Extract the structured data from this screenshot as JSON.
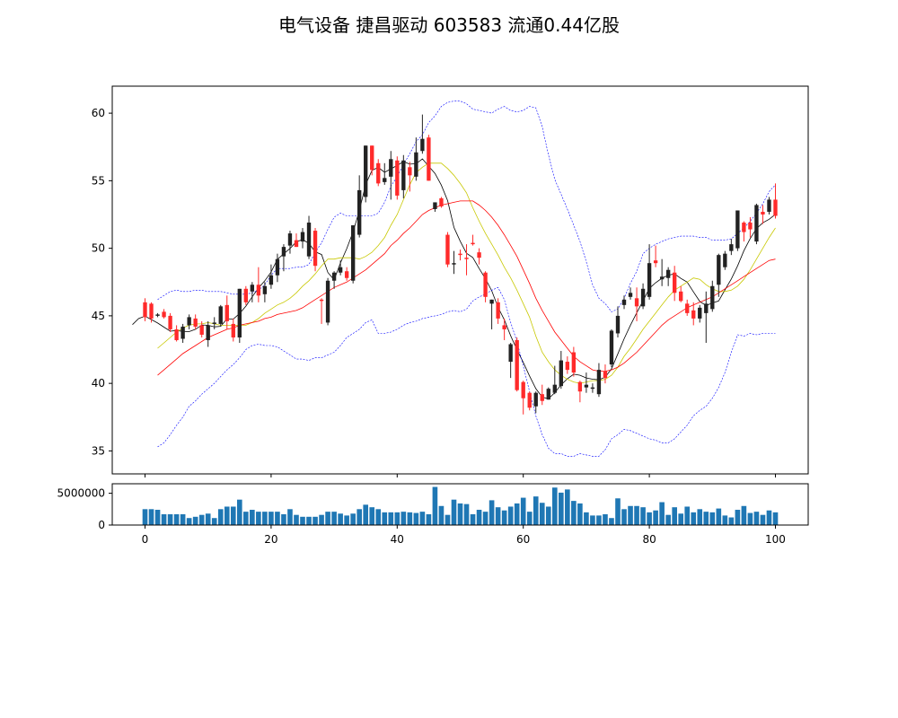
{
  "chart_data": {
    "type": "candlestick",
    "title": "电气设备 捷昌驱动 603583 流通0.44亿股",
    "price_axis": {
      "ylim": [
        33.3,
        62
      ],
      "ticks": [
        35,
        40,
        45,
        50,
        55,
        60
      ]
    },
    "volume_axis": {
      "ylim": [
        0,
        6500000
      ],
      "ticks": [
        0,
        5000000
      ],
      "tick_labels": [
        "0",
        "5000000"
      ]
    },
    "x_axis": {
      "xlim": [
        -5.2,
        105.2
      ],
      "ticks": [
        0,
        20,
        40,
        60,
        80,
        100
      ]
    },
    "colors": {
      "up": "#222222",
      "down": "#ff2a2a",
      "ma5": "#000000",
      "ma10": "#c8c800",
      "ma20": "#ff0000",
      "boll": "#0000ff",
      "volume": "#1f77b4"
    },
    "ohlc": [
      [
        46.0,
        46.3,
        44.6,
        44.9
      ],
      [
        45.9,
        46.0,
        44.5,
        44.8
      ],
      [
        45.0,
        45.2,
        44.9,
        45.1
      ],
      [
        45.3,
        45.5,
        44.8,
        44.9
      ],
      [
        45.0,
        45.2,
        43.8,
        44.0
      ],
      [
        44.0,
        44.3,
        43.1,
        43.2
      ],
      [
        43.3,
        44.4,
        43.0,
        44.2
      ],
      [
        44.3,
        45.1,
        44.0,
        44.9
      ],
      [
        44.8,
        45.1,
        44.0,
        44.2
      ],
      [
        44.3,
        44.6,
        43.4,
        43.6
      ],
      [
        43.2,
        44.6,
        42.7,
        44.3
      ],
      [
        44.4,
        44.9,
        44.0,
        44.5
      ],
      [
        44.4,
        45.8,
        44.2,
        45.7
      ],
      [
        45.8,
        46.5,
        44.0,
        44.6
      ],
      [
        44.4,
        44.8,
        43.1,
        43.4
      ],
      [
        43.4,
        47.0,
        43.0,
        47.0
      ],
      [
        47.0,
        47.2,
        45.8,
        46.0
      ],
      [
        46.8,
        47.5,
        46.0,
        47.3
      ],
      [
        47.3,
        48.6,
        46.0,
        46.5
      ],
      [
        46.6,
        47.5,
        46.0,
        47.2
      ],
      [
        47.3,
        48.8,
        47.0,
        48.0
      ],
      [
        48.0,
        49.6,
        47.5,
        49.2
      ],
      [
        49.4,
        50.3,
        48.3,
        50.1
      ],
      [
        50.2,
        51.3,
        49.6,
        51.1
      ],
      [
        50.6,
        51.1,
        50.1,
        50.1
      ],
      [
        50.5,
        51.5,
        50.0,
        51.2
      ],
      [
        49.4,
        52.4,
        49.2,
        51.9
      ],
      [
        51.3,
        51.5,
        48.3,
        48.7
      ],
      [
        46.2,
        46.3,
        44.4,
        46.1
      ],
      [
        44.5,
        47.8,
        44.3,
        47.6
      ],
      [
        47.6,
        48.3,
        47.0,
        48.2
      ],
      [
        48.2,
        49.1,
        48.0,
        48.6
      ],
      [
        48.3,
        48.6,
        47.6,
        47.8
      ],
      [
        47.6,
        51.7,
        47.4,
        51.7
      ],
      [
        51.0,
        55.4,
        50.8,
        54.3
      ],
      [
        53.8,
        57.6,
        53.4,
        57.6
      ],
      [
        57.6,
        57.6,
        55.4,
        55.8
      ],
      [
        56.3,
        56.6,
        54.6,
        54.8
      ],
      [
        54.9,
        56.3,
        54.7,
        55.2
      ],
      [
        55.3,
        57.2,
        53.6,
        56.6
      ],
      [
        56.5,
        56.8,
        53.6,
        53.9
      ],
      [
        54.3,
        56.9,
        53.7,
        56.5
      ],
      [
        56.0,
        56.4,
        54.2,
        55.4
      ],
      [
        55.3,
        58.2,
        55.0,
        57.1
      ],
      [
        57.2,
        59.9,
        57.0,
        58.1
      ],
      [
        58.2,
        58.4,
        55.0,
        55.0
      ],
      [
        52.9,
        53.4,
        52.7,
        53.4
      ],
      [
        53.7,
        53.8,
        53.0,
        53.1
      ],
      [
        51.0,
        51.2,
        48.6,
        48.8
      ],
      [
        48.8,
        49.8,
        48.1,
        48.9
      ],
      [
        49.6,
        49.9,
        49.1,
        49.5
      ],
      [
        49.3,
        50.3,
        48.0,
        49.2
      ],
      [
        50.4,
        51.0,
        50.2,
        50.3
      ],
      [
        49.7,
        50.0,
        48.8,
        49.3
      ],
      [
        48.2,
        48.3,
        46.0,
        46.4
      ],
      [
        45.9,
        46.2,
        44.0,
        46.2
      ],
      [
        46.0,
        46.3,
        44.4,
        44.8
      ],
      [
        44.3,
        44.8,
        43.2,
        44.0
      ],
      [
        41.6,
        43.0,
        40.4,
        42.9
      ],
      [
        43.2,
        43.4,
        39.4,
        39.5
      ],
      [
        40.1,
        40.2,
        37.7,
        38.9
      ],
      [
        39.3,
        39.4,
        38.0,
        38.2
      ],
      [
        38.3,
        39.4,
        37.8,
        39.3
      ],
      [
        39.2,
        39.9,
        38.4,
        38.7
      ],
      [
        38.8,
        39.7,
        38.8,
        39.6
      ],
      [
        39.3,
        41.3,
        39.2,
        39.9
      ],
      [
        39.8,
        42.4,
        39.6,
        41.7
      ],
      [
        41.6,
        42.0,
        40.7,
        41.0
      ],
      [
        42.3,
        42.7,
        40.5,
        40.8
      ],
      [
        40.1,
        40.2,
        38.6,
        39.4
      ],
      [
        39.7,
        40.8,
        39.3,
        39.9
      ],
      [
        39.6,
        40.0,
        39.3,
        39.7
      ],
      [
        39.2,
        41.5,
        39.0,
        41.0
      ],
      [
        40.9,
        41.4,
        40.0,
        40.4
      ],
      [
        41.4,
        44.0,
        41.2,
        43.9
      ],
      [
        43.7,
        45.7,
        43.4,
        45.0
      ],
      [
        45.8,
        46.5,
        45.5,
        46.2
      ],
      [
        46.4,
        47.1,
        46.2,
        46.7
      ],
      [
        46.3,
        47.1,
        44.6,
        45.7
      ],
      [
        45.7,
        47.4,
        45.5,
        47.0
      ],
      [
        46.4,
        50.3,
        46.2,
        48.9
      ],
      [
        49.1,
        50.2,
        48.6,
        48.9
      ],
      [
        47.7,
        49.2,
        47.2,
        47.9
      ],
      [
        47.8,
        48.6,
        47.2,
        48.4
      ],
      [
        48.2,
        48.7,
        46.1,
        46.7
      ],
      [
        46.8,
        47.2,
        46.0,
        46.1
      ],
      [
        45.9,
        46.2,
        45.0,
        45.2
      ],
      [
        45.4,
        46.0,
        44.3,
        44.8
      ],
      [
        44.8,
        45.8,
        44.5,
        45.6
      ],
      [
        45.2,
        46.8,
        43.0,
        45.9
      ],
      [
        45.5,
        47.6,
        45.3,
        47.2
      ],
      [
        47.3,
        49.6,
        46.4,
        49.5
      ],
      [
        48.6,
        49.8,
        48.4,
        49.6
      ],
      [
        49.8,
        50.7,
        49.5,
        50.3
      ],
      [
        50.0,
        52.8,
        49.8,
        52.8
      ],
      [
        51.9,
        52.0,
        50.5,
        51.2
      ],
      [
        51.9,
        52.3,
        50.8,
        51.4
      ],
      [
        50.5,
        53.3,
        50.3,
        53.2
      ],
      [
        52.7,
        53.2,
        51.8,
        52.5
      ],
      [
        52.7,
        53.8,
        52.5,
        53.6
      ],
      [
        53.6,
        54.8,
        52.2,
        52.4
      ]
    ],
    "volume": [
      2500000,
      2500000,
      2400000,
      1700000,
      1700000,
      1700000,
      1700000,
      1100000,
      1300000,
      1600000,
      1800000,
      1100000,
      2500000,
      2900000,
      2900000,
      4000000,
      2100000,
      2400000,
      2100000,
      2100000,
      2100000,
      2100000,
      1700000,
      2500000,
      1600000,
      1300000,
      1300000,
      1300000,
      1600000,
      2100000,
      2100000,
      1800000,
      1500000,
      1800000,
      2500000,
      3200000,
      2800000,
      2500000,
      2000000,
      2000000,
      2000000,
      2100000,
      2000000,
      1900000,
      2100000,
      1700000,
      6000000,
      3000000,
      1600000,
      4000000,
      3400000,
      3300000,
      1700000,
      2400000,
      2100000,
      3900000,
      2800000,
      2300000,
      2900000,
      3400000,
      4300000,
      2100000,
      4500000,
      3500000,
      2900000,
      5900000,
      5100000,
      5600000,
      3800000,
      3400000,
      2000000,
      1500000,
      1500000,
      1700000,
      1100000,
      4200000,
      2500000,
      3000000,
      3000000,
      2800000,
      2000000,
      2300000,
      3600000,
      1600000,
      2800000,
      1800000,
      2900000,
      2000000,
      2500000,
      2100000,
      2000000,
      2600000,
      1500000,
      1200000,
      2400000,
      3000000,
      1900000,
      2100000,
      1600000,
      2300000,
      2000000
    ],
    "series": [
      {
        "values": [
          44.35,
          44.8,
          44.97,
          44.73,
          44.47,
          44.16,
          43.86,
          43.91,
          43.85,
          43.83,
          44.0,
          44.32,
          44.3,
          44.18,
          44.22,
          44.78,
          44.76,
          45.17,
          45.72,
          46.4,
          47.06,
          47.6,
          48.24,
          49.18,
          49.59,
          49.99,
          50.48,
          50.64,
          50.36,
          49.74,
          49.54,
          48.21,
          47.66,
          48.91,
          49.97,
          51.22,
          52.8,
          54.72,
          55.76,
          55.99,
          55.62,
          55.88,
          56.13,
          56.41,
          56.23,
          56.26,
          56.62,
          56.07,
          55.54,
          54.68,
          53.52,
          51.54,
          50.52,
          49.63,
          49.32,
          48.5,
          47.74,
          46.85,
          45.63,
          44.71,
          43.52,
          42.49,
          41.55,
          40.55,
          39.61,
          38.98,
          38.86,
          39.31,
          39.89,
          40.34,
          40.68,
          40.6,
          40.4,
          40.31,
          40.26,
          40.46,
          41.08,
          42.18,
          43.3,
          44.3,
          45.23,
          46.11,
          47.03,
          47.45,
          47.78,
          48.01,
          48.1,
          47.77,
          47.5,
          46.77,
          46.06,
          45.76,
          45.95,
          46.1,
          46.92,
          47.73,
          48.7,
          49.82,
          50.72,
          51.46,
          51.89,
          52.15,
          52.51
        ]
      },
      {
        "values": [
          42.6,
          43.0,
          43.4,
          43.8,
          44.1,
          44.3,
          44.4,
          44.4,
          44.5,
          44.4,
          44.3,
          44.3,
          44.3,
          44.3,
          44.3,
          44.5,
          44.8,
          45.2,
          45.5,
          45.8,
          46.0,
          46.3,
          46.7,
          47.2,
          47.6,
          48.1,
          48.7,
          49.2,
          49.2,
          49.3,
          49.3,
          49.3,
          49.2,
          49.4,
          49.7,
          50.2,
          50.8,
          51.7,
          52.5,
          53.6,
          54.7,
          55.6,
          56.0,
          56.3,
          56.3,
          56.3,
          55.9,
          55.4,
          54.8,
          54.1,
          53.0,
          52.0,
          51.1,
          50.3,
          49.5,
          48.6,
          47.8,
          46.9,
          45.9,
          44.9,
          43.5,
          42.3,
          41.6,
          41.0,
          40.6,
          40.3,
          40.1,
          40.0,
          40.1,
          40.2,
          40.2,
          40.3,
          40.6,
          41.2,
          42.0,
          42.6,
          43.3,
          44.0,
          44.6,
          45.2,
          45.8,
          46.4,
          46.9,
          47.2,
          47.5,
          47.8,
          47.7,
          47.3,
          47.0,
          46.8,
          46.8,
          46.9,
          47.2,
          47.7,
          48.4,
          49.2,
          50.0,
          50.8,
          51.5
        ]
      },
      {
        "values": [
          40.6,
          41.0,
          41.4,
          41.8,
          42.2,
          42.5,
          42.8,
          43.1,
          43.4,
          43.6,
          43.8,
          44.0,
          44.1,
          44.3,
          44.4,
          44.5,
          44.6,
          44.8,
          44.9,
          45.1,
          45.2,
          45.3,
          45.4,
          45.6,
          45.9,
          46.2,
          46.5,
          46.8,
          47.1,
          47.3,
          47.5,
          47.8,
          48.1,
          48.4,
          48.8,
          49.2,
          49.6,
          50.2,
          50.6,
          51.1,
          51.5,
          52.0,
          52.5,
          52.8,
          53.0,
          53.2,
          53.3,
          53.4,
          53.5,
          53.5,
          53.5,
          53.2,
          52.8,
          52.3,
          51.7,
          51.0,
          50.2,
          49.4,
          48.4,
          47.4,
          46.3,
          45.4,
          44.6,
          43.8,
          43.2,
          42.6,
          42.0,
          41.6,
          41.3,
          41.0,
          40.9,
          40.9,
          41.0,
          41.2,
          41.5,
          41.9,
          42.3,
          42.8,
          43.3,
          43.8,
          44.3,
          44.7,
          45.0,
          45.3,
          45.6,
          45.8,
          46.0,
          46.2,
          46.4,
          46.7,
          47.0,
          47.3,
          47.6,
          47.9,
          48.2,
          48.5,
          48.8,
          49.1,
          49.2
        ]
      },
      {
        "values": [
          46.2,
          46.5,
          46.8,
          46.9,
          46.8,
          46.8,
          46.9,
          46.9,
          46.8,
          46.8,
          46.8,
          46.7,
          46.6,
          46.6,
          46.6,
          46.7,
          46.9,
          47.3,
          48.0,
          48.5,
          48.5,
          48.5,
          48.6,
          48.6,
          48.8,
          49.7,
          50.4,
          51.4,
          52.3,
          52.6,
          52.4,
          52.4,
          52.4,
          52.4,
          52.4,
          52.6,
          53.4,
          54.6,
          55.3,
          56.2,
          57.0,
          57.9,
          58.4,
          59.3,
          59.8,
          60.5,
          60.8,
          60.9,
          60.9,
          60.7,
          60.3,
          60.2,
          60.1,
          60.0,
          60.3,
          60.5,
          60.2,
          60.1,
          60.2,
          60.5,
          60.4,
          59.0,
          56.9,
          55.1,
          54.0,
          52.9,
          51.7,
          50.5,
          49.0,
          47.3,
          46.3,
          45.9,
          45.3,
          45.5,
          46.3,
          47.4,
          48.3,
          49.6,
          50.0,
          50.3,
          50.5,
          50.7,
          50.8,
          50.9,
          50.9,
          50.9,
          50.8,
          50.8,
          50.6,
          50.6,
          50.6,
          50.7,
          51.1,
          51.5,
          52.0,
          52.6,
          53.3,
          54.2,
          54.7
        ]
      },
      {
        "values": [
          35.3,
          35.6,
          36.2,
          36.9,
          37.5,
          38.3,
          38.7,
          39.2,
          39.6,
          40.0,
          40.5,
          41.0,
          41.4,
          41.9,
          42.5,
          42.8,
          42.9,
          42.8,
          42.8,
          42.7,
          42.4,
          42.1,
          41.8,
          41.8,
          41.7,
          41.9,
          41.9,
          42.1,
          42.3,
          42.8,
          43.4,
          43.7,
          44.0,
          44.5,
          44.7,
          43.7,
          43.7,
          43.8,
          44.0,
          44.3,
          44.5,
          44.6,
          44.8,
          44.9,
          45.0,
          45.1,
          45.3,
          45.4,
          45.3,
          45.5,
          46.1,
          46.4,
          46.6,
          46.9,
          47.1,
          46.2,
          44.5,
          43.1,
          41.3,
          39.4,
          37.6,
          36.2,
          35.2,
          34.8,
          34.8,
          34.6,
          34.6,
          34.8,
          34.7,
          34.6,
          34.6,
          35.1,
          35.9,
          36.2,
          36.6,
          36.5,
          36.3,
          36.1,
          35.9,
          35.8,
          35.6,
          35.6,
          35.9,
          36.4,
          36.9,
          37.6,
          38.0,
          38.3,
          38.9,
          39.7,
          40.8,
          42.3,
          43.6,
          43.5,
          43.7,
          43.6,
          43.7,
          43.7,
          43.7
        ]
      }
    ]
  }
}
